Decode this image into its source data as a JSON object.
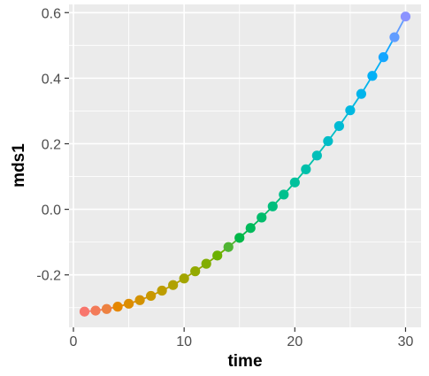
{
  "chart_data": {
    "type": "line",
    "xlabel": "time",
    "ylabel": "mds1",
    "xlim": [
      -0.4,
      31.4
    ],
    "ylim": [
      -0.36,
      0.625
    ],
    "x_ticks": [
      0,
      10,
      20,
      30
    ],
    "x_tick_labels": [
      "0",
      "10",
      "20",
      "30"
    ],
    "y_ticks": [
      -0.2,
      0.0,
      0.2,
      0.4,
      0.6
    ],
    "y_tick_labels": [
      "-0.2",
      "0.0",
      "0.2",
      "0.4",
      "0.6"
    ],
    "grid": true,
    "legend": "none",
    "series": [
      {
        "x": [
          1,
          2,
          3,
          4,
          5,
          6,
          7,
          8,
          9,
          10,
          11,
          12,
          13,
          14,
          15,
          16,
          17,
          18,
          19,
          20,
          21,
          22,
          23,
          24,
          25,
          26,
          27,
          28,
          29,
          30
        ],
        "y": [
          -0.312,
          -0.309,
          -0.304,
          -0.297,
          -0.288,
          -0.277,
          -0.264,
          -0.248,
          -0.231,
          -0.211,
          -0.189,
          -0.166,
          -0.141,
          -0.115,
          -0.087,
          -0.057,
          -0.025,
          0.009,
          0.045,
          0.082,
          0.122,
          0.164,
          0.208,
          0.254,
          0.302,
          0.352,
          0.407,
          0.464,
          0.525,
          0.588
        ],
        "colors": [
          "#f8766d",
          "#f37b59",
          "#ed8141",
          "#e58700",
          "#dc8d00",
          "#d39200",
          "#c99800",
          "#bd9d00",
          "#b0a100",
          "#a3a500",
          "#93aa00",
          "#81ad00",
          "#6bb100",
          "#4fb433",
          "#00b748",
          "#00ba5b",
          "#00bc6c",
          "#00be7d",
          "#00c08d",
          "#00c19c",
          "#00c0ab",
          "#00bfb9",
          "#00bdc7",
          "#00bbd4",
          "#00b8e0",
          "#00b4eb",
          "#00b0f6",
          "#14a6ff",
          "#619cff",
          "#8b93ff"
        ]
      }
    ]
  }
}
